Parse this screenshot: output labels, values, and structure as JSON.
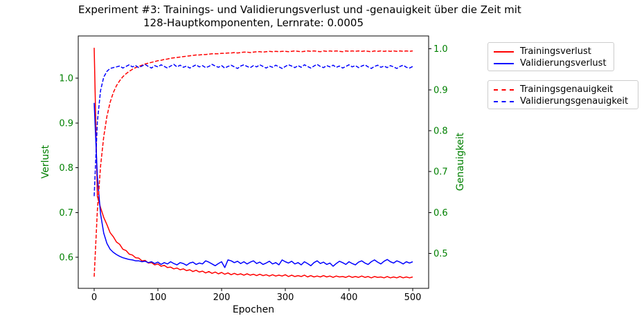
{
  "title": {
    "line1": "Experiment #3: Trainings- und Validierungsverlust und -genauigkeit über die Zeit mit",
    "line2": "128-Hauptkomponenten, Lernrate: 0.0005"
  },
  "axes": {
    "xlabel": "Epochen",
    "ylabel_left": "Verlust",
    "ylabel_right": "Genauigkeit",
    "x_ticks": [
      0,
      100,
      200,
      300,
      400,
      500
    ],
    "y_ticks_left": [
      0.6,
      0.7,
      0.8,
      0.9,
      1.0
    ],
    "y_ticks_right": [
      0.5,
      0.6,
      0.7,
      0.8,
      0.9,
      1.0
    ],
    "axis_label_color": "#008000",
    "y_tick_label_color": "#008000",
    "x_tick_label_color": "#000000",
    "spine_color": "#000000",
    "grid": false
  },
  "colors": {
    "red": "#ff0000",
    "blue": "#0000ff",
    "green": "#008000"
  },
  "chart_data": {
    "type": "line",
    "title": "Experiment #3: Trainings- und Validierungsverlust und -genauigkeit über die Zeit mit 128-Hauptkomponenten, Lernrate: 0.0005",
    "xlabel": "Epochen",
    "ylabel_left": "Verlust",
    "ylabel_right": "Genauigkeit",
    "xlim": [
      -25,
      525
    ],
    "ylim_left": [
      0.5305,
      1.0945
    ],
    "ylim_right": [
      0.4145,
      1.0315
    ],
    "legend_positions": [
      "upper right outside",
      "right outside"
    ],
    "x": [
      0,
      5,
      10,
      15,
      20,
      25,
      30,
      35,
      40,
      45,
      50,
      55,
      60,
      65,
      70,
      75,
      80,
      85,
      90,
      95,
      100,
      105,
      110,
      115,
      120,
      125,
      130,
      135,
      140,
      145,
      150,
      155,
      160,
      165,
      170,
      175,
      180,
      185,
      190,
      195,
      200,
      205,
      210,
      215,
      220,
      225,
      230,
      235,
      240,
      245,
      250,
      255,
      260,
      265,
      270,
      275,
      280,
      285,
      290,
      295,
      300,
      305,
      310,
      315,
      320,
      325,
      330,
      335,
      340,
      345,
      350,
      355,
      360,
      365,
      370,
      375,
      380,
      385,
      390,
      395,
      400,
      405,
      410,
      415,
      420,
      425,
      430,
      435,
      440,
      445,
      450,
      455,
      460,
      465,
      470,
      475,
      480,
      485,
      490,
      495,
      500
    ],
    "series": [
      {
        "name": "Trainingsverlust",
        "axis": "left",
        "color": "#ff0000",
        "style": "solid",
        "values": [
          1.068,
          0.736,
          0.711,
          0.689,
          0.673,
          0.655,
          0.646,
          0.634,
          0.629,
          0.618,
          0.615,
          0.607,
          0.605,
          0.599,
          0.598,
          0.592,
          0.593,
          0.587,
          0.588,
          0.583,
          0.585,
          0.58,
          0.582,
          0.577,
          0.578,
          0.574,
          0.576,
          0.572,
          0.574,
          0.57,
          0.572,
          0.568,
          0.571,
          0.567,
          0.569,
          0.565,
          0.568,
          0.564,
          0.567,
          0.563,
          0.566,
          0.562,
          0.565,
          0.561,
          0.564,
          0.561,
          0.563,
          0.56,
          0.563,
          0.56,
          0.562,
          0.559,
          0.562,
          0.559,
          0.561,
          0.558,
          0.561,
          0.558,
          0.56,
          0.558,
          0.561,
          0.557,
          0.56,
          0.557,
          0.559,
          0.557,
          0.56,
          0.556,
          0.559,
          0.556,
          0.558,
          0.556,
          0.559,
          0.556,
          0.558,
          0.555,
          0.558,
          0.556,
          0.557,
          0.555,
          0.558,
          0.555,
          0.557,
          0.555,
          0.558,
          0.555,
          0.557,
          0.554,
          0.557,
          0.555,
          0.556,
          0.554,
          0.557,
          0.554,
          0.556,
          0.554,
          0.557,
          0.554,
          0.556,
          0.554,
          0.556
        ]
      },
      {
        "name": "Validierungsverlust",
        "axis": "left",
        "color": "#0000ff",
        "style": "solid",
        "values": [
          0.945,
          0.78,
          0.697,
          0.654,
          0.631,
          0.618,
          0.611,
          0.606,
          0.602,
          0.599,
          0.597,
          0.595,
          0.594,
          0.592,
          0.592,
          0.59,
          0.591,
          0.588,
          0.59,
          0.586,
          0.589,
          0.584,
          0.588,
          0.585,
          0.59,
          0.586,
          0.583,
          0.588,
          0.586,
          0.582,
          0.587,
          0.589,
          0.584,
          0.587,
          0.585,
          0.592,
          0.589,
          0.585,
          0.581,
          0.586,
          0.59,
          0.577,
          0.594,
          0.592,
          0.588,
          0.591,
          0.586,
          0.59,
          0.585,
          0.589,
          0.592,
          0.586,
          0.589,
          0.584,
          0.587,
          0.591,
          0.585,
          0.588,
          0.583,
          0.594,
          0.59,
          0.587,
          0.591,
          0.585,
          0.588,
          0.583,
          0.59,
          0.586,
          0.581,
          0.588,
          0.592,
          0.586,
          0.589,
          0.584,
          0.587,
          0.58,
          0.586,
          0.591,
          0.588,
          0.584,
          0.59,
          0.586,
          0.583,
          0.589,
          0.592,
          0.587,
          0.584,
          0.59,
          0.594,
          0.589,
          0.585,
          0.591,
          0.595,
          0.59,
          0.587,
          0.592,
          0.589,
          0.585,
          0.59,
          0.587,
          0.59
        ]
      },
      {
        "name": "Trainingsgenauigkeit",
        "axis": "right",
        "color": "#ff0000",
        "style": "dashed",
        "values": [
          0.443,
          0.605,
          0.713,
          0.785,
          0.835,
          0.869,
          0.893,
          0.91,
          0.922,
          0.932,
          0.939,
          0.945,
          0.95,
          0.954,
          0.957,
          0.96,
          0.963,
          0.965,
          0.967,
          0.969,
          0.971,
          0.972,
          0.974,
          0.975,
          0.977,
          0.978,
          0.979,
          0.98,
          0.981,
          0.982,
          0.983,
          0.984,
          0.985,
          0.985,
          0.986,
          0.986,
          0.987,
          0.988,
          0.988,
          0.988,
          0.989,
          0.989,
          0.99,
          0.99,
          0.991,
          0.99,
          0.991,
          0.992,
          0.992,
          0.991,
          0.992,
          0.993,
          0.993,
          0.992,
          0.993,
          0.994,
          0.993,
          0.994,
          0.993,
          0.994,
          0.994,
          0.993,
          0.994,
          0.995,
          0.994,
          0.993,
          0.994,
          0.995,
          0.994,
          0.995,
          0.994,
          0.993,
          0.995,
          0.994,
          0.995,
          0.994,
          0.995,
          0.994,
          0.993,
          0.995,
          0.994,
          0.995,
          0.994,
          0.995,
          0.994,
          0.995,
          0.994,
          0.993,
          0.995,
          0.994,
          0.995,
          0.994,
          0.995,
          0.994,
          0.995,
          0.994,
          0.995,
          0.994,
          0.995,
          0.994,
          0.995
        ]
      },
      {
        "name": "Validierungsgenauigkeit",
        "axis": "right",
        "color": "#0000ff",
        "style": "dashed",
        "values": [
          0.64,
          0.822,
          0.898,
          0.931,
          0.945,
          0.952,
          0.954,
          0.956,
          0.958,
          0.953,
          0.957,
          0.961,
          0.956,
          0.959,
          0.954,
          0.958,
          0.962,
          0.957,
          0.953,
          0.959,
          0.956,
          0.961,
          0.957,
          0.953,
          0.958,
          0.962,
          0.956,
          0.96,
          0.955,
          0.958,
          0.953,
          0.957,
          0.961,
          0.956,
          0.959,
          0.954,
          0.957,
          0.962,
          0.958,
          0.955,
          0.959,
          0.953,
          0.957,
          0.96,
          0.956,
          0.952,
          0.958,
          0.961,
          0.957,
          0.954,
          0.959,
          0.956,
          0.961,
          0.957,
          0.953,
          0.958,
          0.955,
          0.96,
          0.956,
          0.952,
          0.957,
          0.961,
          0.958,
          0.954,
          0.959,
          0.955,
          0.961,
          0.957,
          0.953,
          0.958,
          0.962,
          0.957,
          0.954,
          0.959,
          0.956,
          0.96,
          0.955,
          0.958,
          0.953,
          0.957,
          0.961,
          0.956,
          0.959,
          0.954,
          0.958,
          0.961,
          0.956,
          0.952,
          0.957,
          0.96,
          0.955,
          0.958,
          0.954,
          0.959,
          0.956,
          0.952,
          0.957,
          0.96,
          0.955,
          0.953,
          0.957
        ]
      }
    ]
  }
}
